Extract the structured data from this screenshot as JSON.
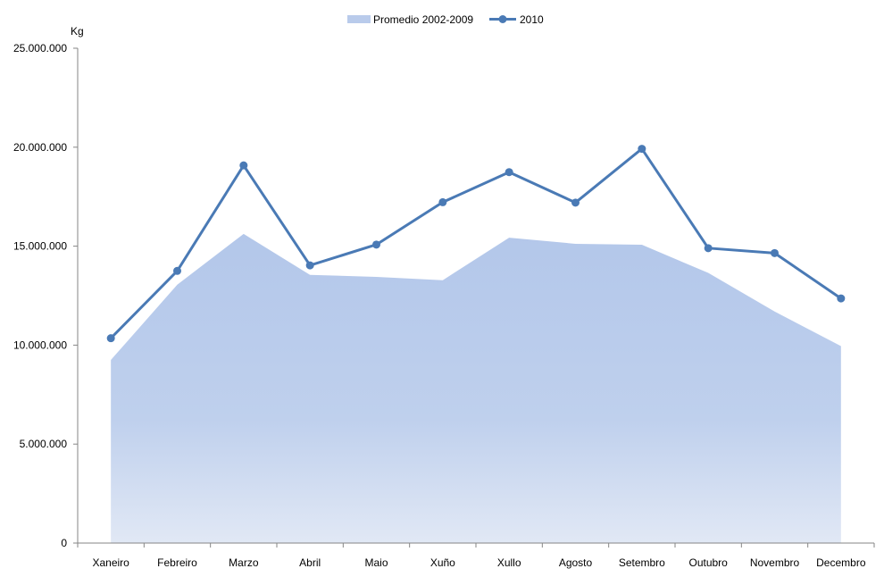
{
  "chart_data": {
    "type": "area",
    "unit_label": "Kg",
    "categories": [
      "Xaneiro",
      "Febreiro",
      "Marzo",
      "Abril",
      "Maio",
      "Xuño",
      "Xullo",
      "Agosto",
      "Setembro",
      "Outubro",
      "Novembro",
      "Decembro"
    ],
    "ylim": [
      0,
      25000000
    ],
    "y_ticks": [
      0,
      5000000,
      10000000,
      15000000,
      20000000,
      25000000
    ],
    "y_tick_labels": [
      "0",
      "5.000.000",
      "10.000.000",
      "15.000.000",
      "20.000.000",
      "25.000.000"
    ],
    "grid": false,
    "legend_position": "top-center",
    "series": [
      {
        "name": "Promedio 2002-2009",
        "type": "area",
        "color": "#b9cbeb",
        "values": [
          9250000,
          13050000,
          15620000,
          13550000,
          13450000,
          13280000,
          15430000,
          15120000,
          15070000,
          13650000,
          11700000,
          9950000
        ]
      },
      {
        "name": "2010",
        "type": "line",
        "color": "#4a7ab5",
        "values": [
          10350000,
          13750000,
          19080000,
          14030000,
          15080000,
          17220000,
          18740000,
          17200000,
          19920000,
          14900000,
          14650000,
          12360000
        ]
      }
    ]
  }
}
